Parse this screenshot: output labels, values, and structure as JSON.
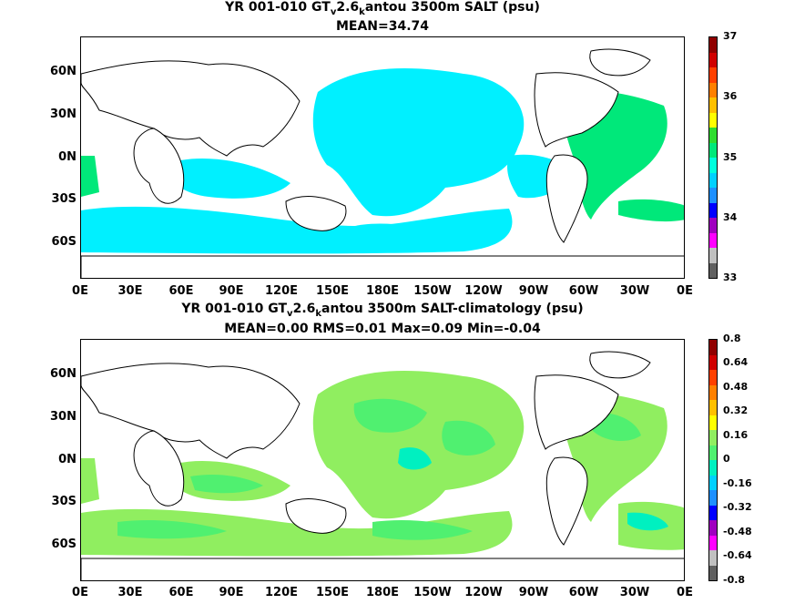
{
  "panel1": {
    "title_prefix": "YR 001-010 GT",
    "title_sub1": "v",
    "title_mid": "2.6",
    "title_sub2": "k",
    "title_suffix": "antou 3500m SALT (psu)",
    "stats": "MEAN=34.74",
    "colorbar_labels": [
      "37",
      "36",
      "35",
      "34",
      "33"
    ],
    "colors": [
      "#606060",
      "#c0c0c0",
      "#ff00ff",
      "#a000c0",
      "#0000ff",
      "#1e90ff",
      "#00d0ff",
      "#00ffdd",
      "#00e87a",
      "#2fdd2f",
      "#ffff00",
      "#ffc000",
      "#ff8000",
      "#ff4000",
      "#d00000",
      "#900000"
    ]
  },
  "panel2": {
    "title_prefix": "YR 001-010 GT",
    "title_sub1": "v",
    "title_mid": "2.6",
    "title_sub2": "k",
    "title_suffix": "antou 3500m SALT-climatology (psu)",
    "stats": "MEAN=0.00   RMS=0.01   Max=0.09   Min=-0.04",
    "colorbar_labels": [
      "0.8",
      "0.64",
      "0.48",
      "0.32",
      "0.16",
      "0",
      "-0.16",
      "-0.32",
      "-0.48",
      "-0.64",
      "-0.8"
    ],
    "colors": [
      "#606060",
      "#c0c0c0",
      "#ff00ff",
      "#a000c0",
      "#0000ff",
      "#1e90ff",
      "#00d0ff",
      "#00f0c0",
      "#50f070",
      "#90ee60",
      "#ffff00",
      "#ffc000",
      "#ff8000",
      "#ff4000",
      "#d00000",
      "#900000"
    ]
  },
  "lat_labels": [
    "60N",
    "30N",
    "0N",
    "30S",
    "60S"
  ],
  "lon_labels": [
    "0E",
    "30E",
    "60E",
    "90E",
    "120E",
    "150E",
    "180E",
    "150W",
    "120W",
    "90W",
    "60W",
    "30W",
    "0E"
  ]
}
